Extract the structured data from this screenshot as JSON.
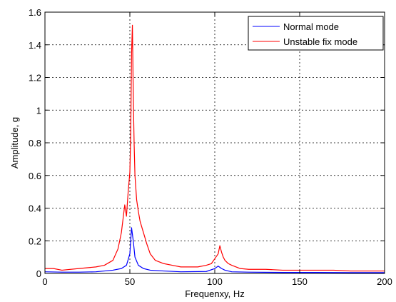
{
  "chart_data": {
    "type": "line",
    "xlabel": "Frequenxy, Hz",
    "ylabel": "Amplitude, g",
    "xlim": [
      0,
      200
    ],
    "ylim": [
      0,
      1.6
    ],
    "x_ticks": [
      "0",
      "50",
      "100",
      "150",
      "200"
    ],
    "y_ticks": [
      "0",
      "0.2",
      "0.4",
      "0.6",
      "0.8",
      "1",
      "1.2",
      "1.4",
      "1.6"
    ],
    "grid": true,
    "legend_position": "top-right",
    "series": [
      {
        "name": "Normal mode",
        "color": "#0000ff",
        "x": [
          0,
          10,
          20,
          30,
          40,
          45,
          48,
          50,
          51,
          52,
          53,
          55,
          58,
          62,
          70,
          80,
          95,
          100,
          102,
          104,
          106,
          110,
          120,
          140,
          160,
          180,
          200
        ],
        "y": [
          0.01,
          0.008,
          0.008,
          0.01,
          0.02,
          0.03,
          0.05,
          0.12,
          0.28,
          0.2,
          0.1,
          0.05,
          0.03,
          0.02,
          0.015,
          0.01,
          0.012,
          0.03,
          0.045,
          0.03,
          0.02,
          0.01,
          0.008,
          0.006,
          0.006,
          0.005,
          0.005
        ]
      },
      {
        "name": "Unstable fix mode",
        "color": "#ff0000",
        "x": [
          0,
          5,
          10,
          20,
          30,
          35,
          40,
          43,
          45,
          47,
          48,
          49,
          50,
          50.5,
          51,
          51.5,
          52,
          52.5,
          53,
          54,
          55,
          56,
          58,
          60,
          62,
          65,
          70,
          75,
          80,
          85,
          90,
          95,
          98,
          100,
          102,
          103,
          104,
          105,
          106,
          108,
          110,
          115,
          120,
          130,
          140,
          150,
          160,
          170,
          180,
          190,
          200
        ],
        "y": [
          0.03,
          0.03,
          0.02,
          0.03,
          0.04,
          0.05,
          0.08,
          0.15,
          0.25,
          0.42,
          0.35,
          0.5,
          0.62,
          0.85,
          1.35,
          1.52,
          1.1,
          0.8,
          0.6,
          0.45,
          0.38,
          0.32,
          0.25,
          0.18,
          0.12,
          0.08,
          0.06,
          0.05,
          0.04,
          0.04,
          0.04,
          0.05,
          0.06,
          0.09,
          0.12,
          0.17,
          0.13,
          0.1,
          0.08,
          0.06,
          0.05,
          0.03,
          0.025,
          0.025,
          0.02,
          0.02,
          0.02,
          0.02,
          0.015,
          0.015,
          0.015
        ]
      }
    ]
  }
}
